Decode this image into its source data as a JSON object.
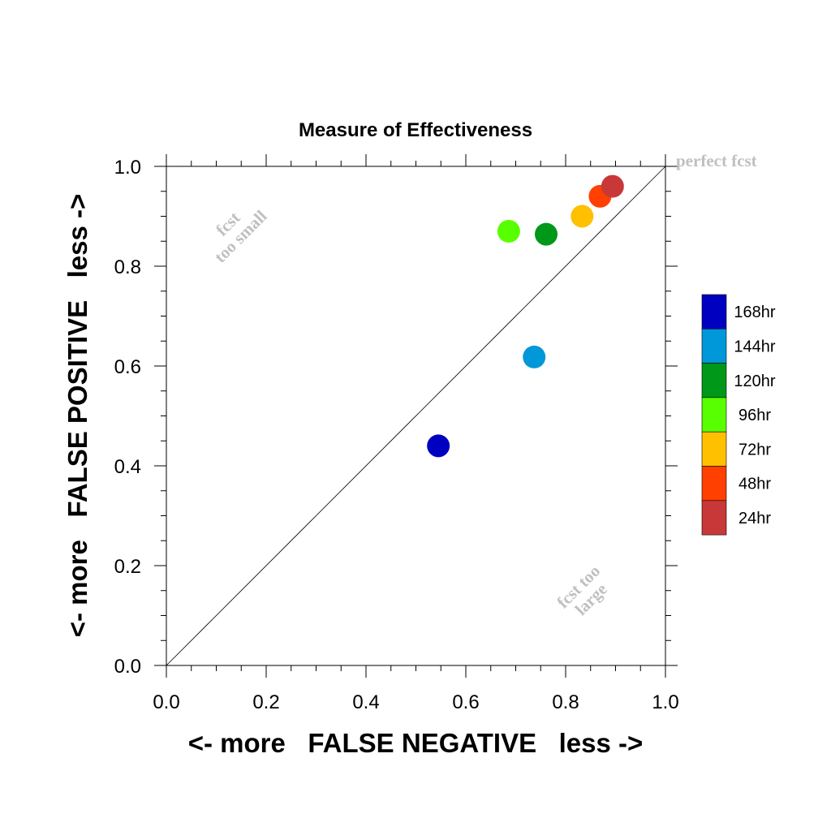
{
  "chart_data": {
    "type": "scatter",
    "title": "Measure of Effectiveness",
    "xlabel": "<- more   FALSE NEGATIVE   less ->",
    "ylabel": "<- more   FALSE POSITIVE   less ->",
    "xlim": [
      0.0,
      1.0
    ],
    "ylim": [
      0.0,
      1.0
    ],
    "xticks": [
      "0.0",
      "0.2",
      "0.4",
      "0.6",
      "0.8",
      "1.0"
    ],
    "yticks": [
      "0.0",
      "0.2",
      "0.4",
      "0.6",
      "0.8",
      "1.0"
    ],
    "grid": false,
    "reference_line": "diagonal y = x",
    "legend_position": "right",
    "annotations": {
      "perfect": "perfect fcst",
      "too_small_line1": "fcst",
      "too_small_line2": "too small",
      "too_large_line1": "fcst too",
      "too_large_line2": "large"
    },
    "series": [
      {
        "name": "168hr",
        "color": "#0000c0",
        "x": 0.545,
        "y": 0.44
      },
      {
        "name": "144hr",
        "color": "#0098d8",
        "x": 0.737,
        "y": 0.618
      },
      {
        "name": "120hr",
        "color": "#009818",
        "x": 0.761,
        "y": 0.864
      },
      {
        "name": "96hr",
        "color": "#58ff00",
        "x": 0.686,
        "y": 0.87
      },
      {
        "name": "72hr",
        "color": "#ffc000",
        "x": 0.833,
        "y": 0.9
      },
      {
        "name": "48hr",
        "color": "#ff4000",
        "x": 0.869,
        "y": 0.94
      },
      {
        "name": "24hr",
        "color": "#c83838",
        "x": 0.894,
        "y": 0.96
      }
    ]
  }
}
